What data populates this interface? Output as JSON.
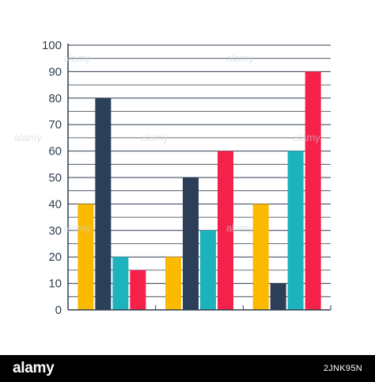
{
  "colors": {
    "yellow": "#fbb900",
    "navy": "#2b3f59",
    "teal": "#1cb3bd",
    "red": "#f5214b",
    "axis": "#2f3e4e",
    "grid": "#2f3e4e"
  },
  "chart_data": {
    "type": "bar",
    "title": "",
    "xlabel": "",
    "ylabel": "",
    "ylim": [
      0,
      100
    ],
    "yticks": [
      0,
      10,
      20,
      30,
      40,
      50,
      60,
      70,
      80,
      90,
      100
    ],
    "minor_gridlines_every": 5,
    "grid": true,
    "legend": "none",
    "categories": [
      "",
      "",
      ""
    ],
    "series": [
      {
        "color": "#fbb900",
        "values": [
          40,
          20,
          40
        ]
      },
      {
        "color": "#2b3f59",
        "values": [
          80,
          50,
          10
        ]
      },
      {
        "color": "#1cb3bd",
        "values": [
          20,
          30,
          60
        ]
      },
      {
        "color": "#f5214b",
        "values": [
          15,
          60,
          90
        ]
      }
    ]
  },
  "watermark": {
    "overlay_text": "alamy",
    "brand": "alamy",
    "image_code": "2JNK95N"
  }
}
